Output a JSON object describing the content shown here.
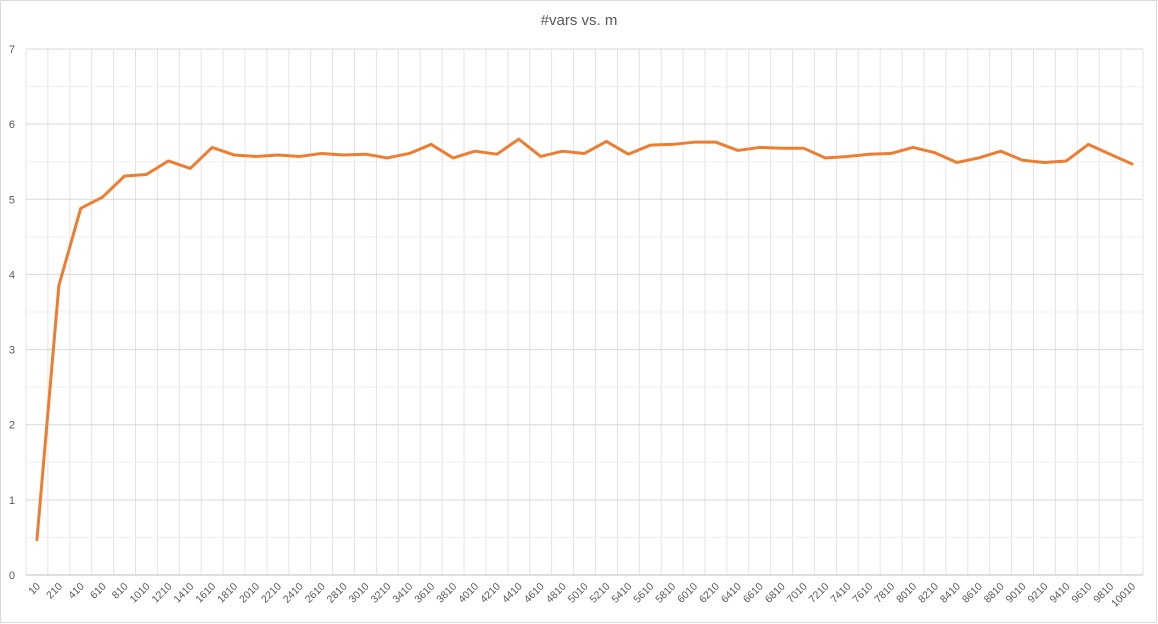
{
  "chart_data": {
    "type": "line",
    "title": "#vars vs. m",
    "xlabel": "",
    "ylabel": "",
    "ylim": [
      0,
      7
    ],
    "yticks": [
      0,
      1,
      2,
      3,
      4,
      5,
      6,
      7
    ],
    "grid": true,
    "legend": "none",
    "series_color": "#ED7D31",
    "x": [
      10,
      210,
      410,
      610,
      810,
      1010,
      1210,
      1410,
      1610,
      1810,
      2010,
      2210,
      2410,
      2610,
      2810,
      3010,
      3210,
      3410,
      3610,
      3810,
      4010,
      4210,
      4410,
      4610,
      4810,
      5010,
      5210,
      5410,
      5610,
      5810,
      6010,
      6210,
      6410,
      6610,
      6810,
      7010,
      7210,
      7410,
      7610,
      7810,
      8010,
      8210,
      8410,
      8610,
      8810,
      9010,
      9210,
      9410,
      9610,
      9810,
      10010
    ],
    "series": [
      {
        "values": [
          0.47,
          3.85,
          4.88,
          5.03,
          5.31,
          5.33,
          5.51,
          5.41,
          5.69,
          5.59,
          5.57,
          5.59,
          5.57,
          5.61,
          5.59,
          5.6,
          5.55,
          5.61,
          5.73,
          5.55,
          5.64,
          5.6,
          5.8,
          5.57,
          5.64,
          5.61,
          5.77,
          5.6,
          5.72,
          5.73,
          5.76,
          5.76,
          5.65,
          5.69,
          5.68,
          5.68,
          5.55,
          5.57,
          5.6,
          5.61,
          5.69,
          5.62,
          5.49,
          5.55,
          5.64,
          5.52,
          5.49,
          5.51,
          5.73,
          5.6,
          5.47
        ]
      }
    ]
  }
}
